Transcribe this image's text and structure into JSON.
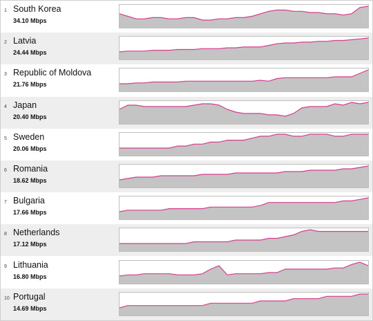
{
  "colors": {
    "line": "#d63c8e",
    "fill": "#c4c4c4",
    "row_alt": "#eeeeee",
    "row": "#ffffff"
  },
  "chart_data": {
    "type": "area",
    "y_scale": "independent per sparkline",
    "rows": [
      {
        "rank": "1",
        "country": "South Korea",
        "speed": "34.10 Mbps",
        "values": [
          50,
          48,
          46,
          46,
          47,
          47,
          46,
          46,
          47,
          47,
          45,
          45,
          46,
          46,
          47,
          47,
          48,
          50,
          52,
          53,
          53,
          52,
          52,
          51,
          51,
          50,
          50,
          49,
          50,
          55,
          56
        ]
      },
      {
        "rank": "2",
        "country": "Latvia",
        "speed": "24.44 Mbps",
        "values": [
          14,
          15,
          15,
          15,
          16,
          16,
          16,
          17,
          17,
          17,
          18,
          18,
          18,
          19,
          19,
          20,
          20,
          20,
          22,
          24,
          25,
          25,
          26,
          26,
          27,
          27,
          28,
          28,
          29,
          30,
          31
        ]
      },
      {
        "rank": "3",
        "country": "Republic of Moldova",
        "speed": "21.76 Mbps",
        "values": [
          10,
          10,
          11,
          11,
          12,
          12,
          12,
          12,
          13,
          13,
          13,
          13,
          13,
          13,
          13,
          13,
          13,
          14,
          13,
          16,
          17,
          17,
          17,
          17,
          17,
          17,
          18,
          18,
          18,
          22,
          26
        ]
      },
      {
        "rank": "4",
        "country": "Japan",
        "speed": "20.40 Mbps",
        "values": [
          22,
          25,
          25,
          24,
          24,
          24,
          24,
          24,
          24,
          25,
          26,
          26,
          25,
          22,
          20,
          19,
          19,
          19,
          18,
          18,
          17,
          19,
          23,
          24,
          24,
          24,
          26,
          25,
          27,
          26,
          27
        ]
      },
      {
        "rank": "5",
        "country": "Sweden",
        "speed": "20.06 Mbps",
        "values": [
          13,
          13,
          13,
          13,
          13,
          13,
          13,
          14,
          14,
          15,
          15,
          16,
          16,
          17,
          17,
          17,
          18,
          19,
          19,
          20,
          20,
          19,
          19,
          20,
          20,
          20,
          19,
          19,
          20,
          20,
          20
        ]
      },
      {
        "rank": "6",
        "country": "Romania",
        "speed": "18.62 Mbps",
        "values": [
          9,
          10,
          11,
          11,
          11,
          12,
          12,
          12,
          12,
          12,
          13,
          13,
          13,
          13,
          14,
          14,
          14,
          14,
          14,
          14,
          15,
          15,
          15,
          16,
          16,
          16,
          16,
          17,
          17,
          18,
          19
        ]
      },
      {
        "rank": "7",
        "country": "Bulgaria",
        "speed": "17.66 Mbps",
        "values": [
          8,
          9,
          9,
          9,
          9,
          9,
          10,
          10,
          10,
          10,
          10,
          11,
          11,
          11,
          11,
          11,
          11,
          12,
          14,
          14,
          14,
          14,
          14,
          14,
          14,
          14,
          14,
          15,
          15,
          16,
          17
        ]
      },
      {
        "rank": "8",
        "country": "Netherlands",
        "speed": "17.12 Mbps",
        "values": [
          10,
          10,
          10,
          10,
          10,
          10,
          10,
          10,
          10,
          11,
          11,
          11,
          11,
          11,
          12,
          12,
          12,
          12,
          13,
          13,
          14,
          15,
          17,
          18,
          17,
          17,
          17,
          17,
          17,
          17,
          17
        ]
      },
      {
        "rank": "9",
        "country": "Lithuania",
        "speed": "16.80 Mbps",
        "values": [
          8,
          9,
          9,
          10,
          10,
          10,
          10,
          9,
          9,
          9,
          10,
          14,
          17,
          9,
          10,
          10,
          10,
          10,
          11,
          11,
          14,
          14,
          14,
          14,
          14,
          14,
          15,
          15,
          18,
          20,
          17
        ]
      },
      {
        "rank": "10",
        "country": "Portugal",
        "speed": "14.69 Mbps",
        "values": [
          10,
          11,
          11,
          11,
          11,
          11,
          11,
          11,
          11,
          11,
          11,
          12,
          12,
          12,
          12,
          12,
          12,
          13,
          13,
          13,
          13,
          14,
          14,
          14,
          14,
          15,
          15,
          15,
          15,
          16,
          16
        ]
      }
    ]
  }
}
